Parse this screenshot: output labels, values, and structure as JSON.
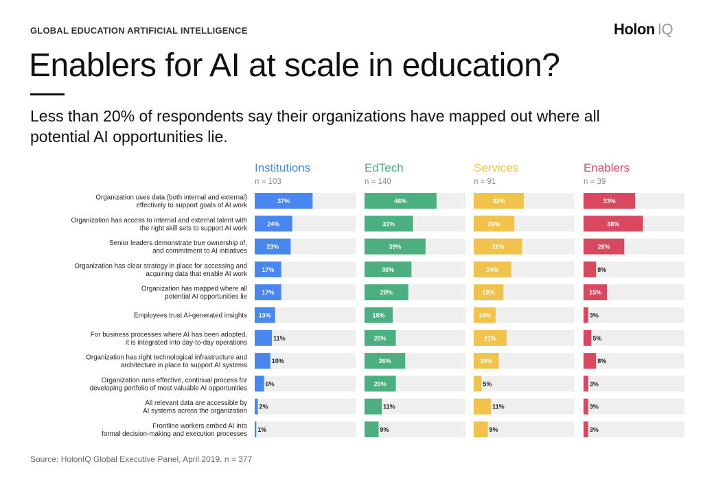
{
  "header": {
    "kicker": "GLOBAL EDUCATION ARTIFICIAL INTELLIGENCE",
    "logo_primary": "Holon",
    "logo_secondary": "IQ",
    "title": "Enablers for AI at scale in education?",
    "subtitle": "Less than 20% of respondents say their organizations have mapped out where all potential AI opportunities lie."
  },
  "footer": {
    "source": "Source: HolonIQ Global Executive Panel, April 2019. n = 377"
  },
  "colors": {
    "track": "#efefef",
    "label_text": "#222222"
  },
  "chart_data": {
    "type": "bar",
    "orientation": "horizontal",
    "xlim": [
      0,
      100
    ],
    "categories": [
      [
        "Organization uses data (both internal and external)",
        "effectively to support goals of AI work"
      ],
      [
        "Organization has access to internal and external talent with",
        "the right skill sets to support AI work"
      ],
      [
        "Senior leaders demonstrate true ownership of,",
        "and commitment to AI initiatives"
      ],
      [
        "Organization has clear strategy in place for accessing and",
        "acquiring data that enable AI work"
      ],
      [
        "Organization has mapped where all",
        "potential AI opportunities lie"
      ],
      [
        "Employees trust AI-generated insights"
      ],
      [
        "For business processes where AI has been adopted,",
        "it is integrated into day-to-day operations"
      ],
      [
        "Organization has right technological infrastructure and",
        "architecture in place to support AI systems"
      ],
      [
        "Organization runs effective, continual process for",
        "developing portfolio of most valuable AI opportunities"
      ],
      [
        "All relevant data are accessible by",
        "AI systems across the organization"
      ],
      [
        "Frontline workers embed AI into",
        "formal decision-making and execution processes"
      ]
    ],
    "series": [
      {
        "name": "Institutions",
        "n_label": "n = 103",
        "color": "#4a86f0",
        "values": [
          37,
          24,
          23,
          17,
          17,
          13,
          11,
          10,
          6,
          2,
          1
        ]
      },
      {
        "name": "EdTech",
        "n_label": "n = 140",
        "color": "#4caf7f",
        "values": [
          46,
          31,
          39,
          30,
          28,
          18,
          20,
          26,
          20,
          11,
          9
        ]
      },
      {
        "name": "Services",
        "n_label": "n = 91",
        "color": "#f2c34a",
        "values": [
          32,
          26,
          31,
          24,
          19,
          14,
          21,
          16,
          5,
          11,
          9
        ]
      },
      {
        "name": "Enablers",
        "n_label": "n = 39",
        "color": "#d9485f",
        "values": [
          33,
          38,
          26,
          8,
          15,
          3,
          5,
          8,
          3,
          3,
          3
        ]
      }
    ]
  }
}
